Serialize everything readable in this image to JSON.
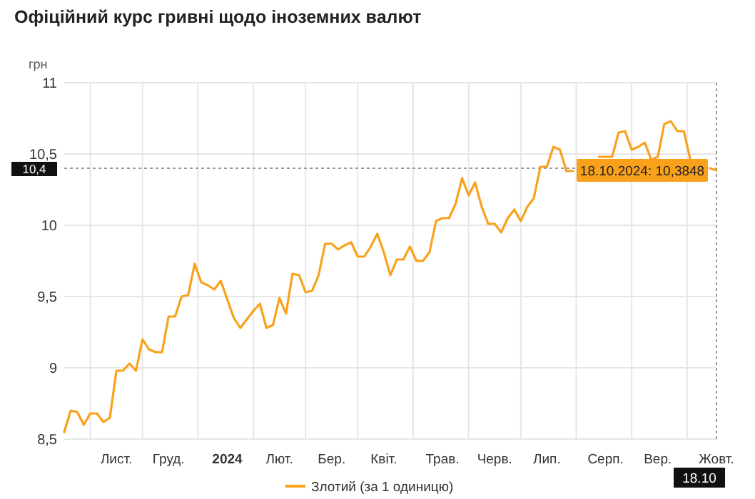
{
  "chart_data": {
    "type": "line",
    "title": "Офіційний курс гривні щодо іноземних валют",
    "ylabel": "грн",
    "categories": [
      null,
      null,
      null,
      null,
      null,
      null,
      null,
      null,
      "Лист.",
      null,
      null,
      null,
      null,
      null,
      null,
      null,
      "Груд.",
      null,
      null,
      null,
      null,
      null,
      null,
      null,
      null,
      "2024",
      null,
      null,
      null,
      null,
      null,
      null,
      null,
      "Лют.",
      null,
      null,
      null,
      null,
      null,
      null,
      null,
      "Бер.",
      null,
      null,
      null,
      null,
      null,
      null,
      null,
      "Квіт.",
      null,
      null,
      null,
      null,
      null,
      null,
      null,
      null,
      "Трав.",
      null,
      null,
      null,
      null,
      null,
      null,
      null,
      "Черв.",
      null,
      null,
      null,
      null,
      null,
      null,
      null,
      "Лип.",
      null,
      null,
      null,
      null,
      null,
      null,
      null,
      null,
      "Серп.",
      null,
      null,
      null,
      null,
      null,
      null,
      null,
      "Вер.",
      null,
      null,
      null,
      null,
      null,
      null,
      null,
      null,
      "Жовт."
    ],
    "series": [
      {
        "name": "Злотий (за 1 одиницю)",
        "color": "#f9a11b",
        "values": [
          8.55,
          8.7,
          8.69,
          8.6,
          8.68,
          8.68,
          8.62,
          8.65,
          8.98,
          8.98,
          9.03,
          8.98,
          9.2,
          9.13,
          9.11,
          9.11,
          9.36,
          9.36,
          9.5,
          9.51,
          9.73,
          9.6,
          9.58,
          9.55,
          9.61,
          9.48,
          9.35,
          9.28,
          9.34,
          9.4,
          9.45,
          9.28,
          9.3,
          9.49,
          9.38,
          9.66,
          9.65,
          9.53,
          9.54,
          9.65,
          9.87,
          9.87,
          9.83,
          9.86,
          9.88,
          9.78,
          9.78,
          9.85,
          9.94,
          9.81,
          9.65,
          9.76,
          9.76,
          9.85,
          9.75,
          9.75,
          9.81,
          10.03,
          10.05,
          10.05,
          10.15,
          10.33,
          10.21,
          10.3,
          10.13,
          10.01,
          10.01,
          9.95,
          10.05,
          10.11,
          10.03,
          10.13,
          10.19,
          10.41,
          10.41,
          10.55,
          10.53,
          10.38,
          10.38,
          null,
          null,
          null,
          10.48,
          10.48,
          10.48,
          10.65,
          10.66,
          10.53,
          10.55,
          10.58,
          10.46,
          10.48,
          10.71,
          10.73,
          10.66,
          10.66,
          10.46,
          null,
          null,
          10.4,
          10.3848
        ]
      }
    ],
    "ylim": [
      8.5,
      11
    ],
    "yticks": [
      {
        "value": 8.5,
        "label": "8,5"
      },
      9,
      {
        "value": 9.5,
        "label": "9,5"
      },
      10,
      {
        "value": 10.5,
        "label": "10,5"
      },
      11
    ],
    "grid": true,
    "legend": "bottom",
    "ref_lines": [
      {
        "axis": "y",
        "value": 10.4,
        "label": "10,4"
      },
      {
        "axis": "x",
        "value": "Жовт.",
        "label": "18.10"
      }
    ],
    "annotations": [
      {
        "text": "18.10.2024: 10,3848",
        "x": "Жовт.",
        "y": 10.3848
      }
    ]
  }
}
